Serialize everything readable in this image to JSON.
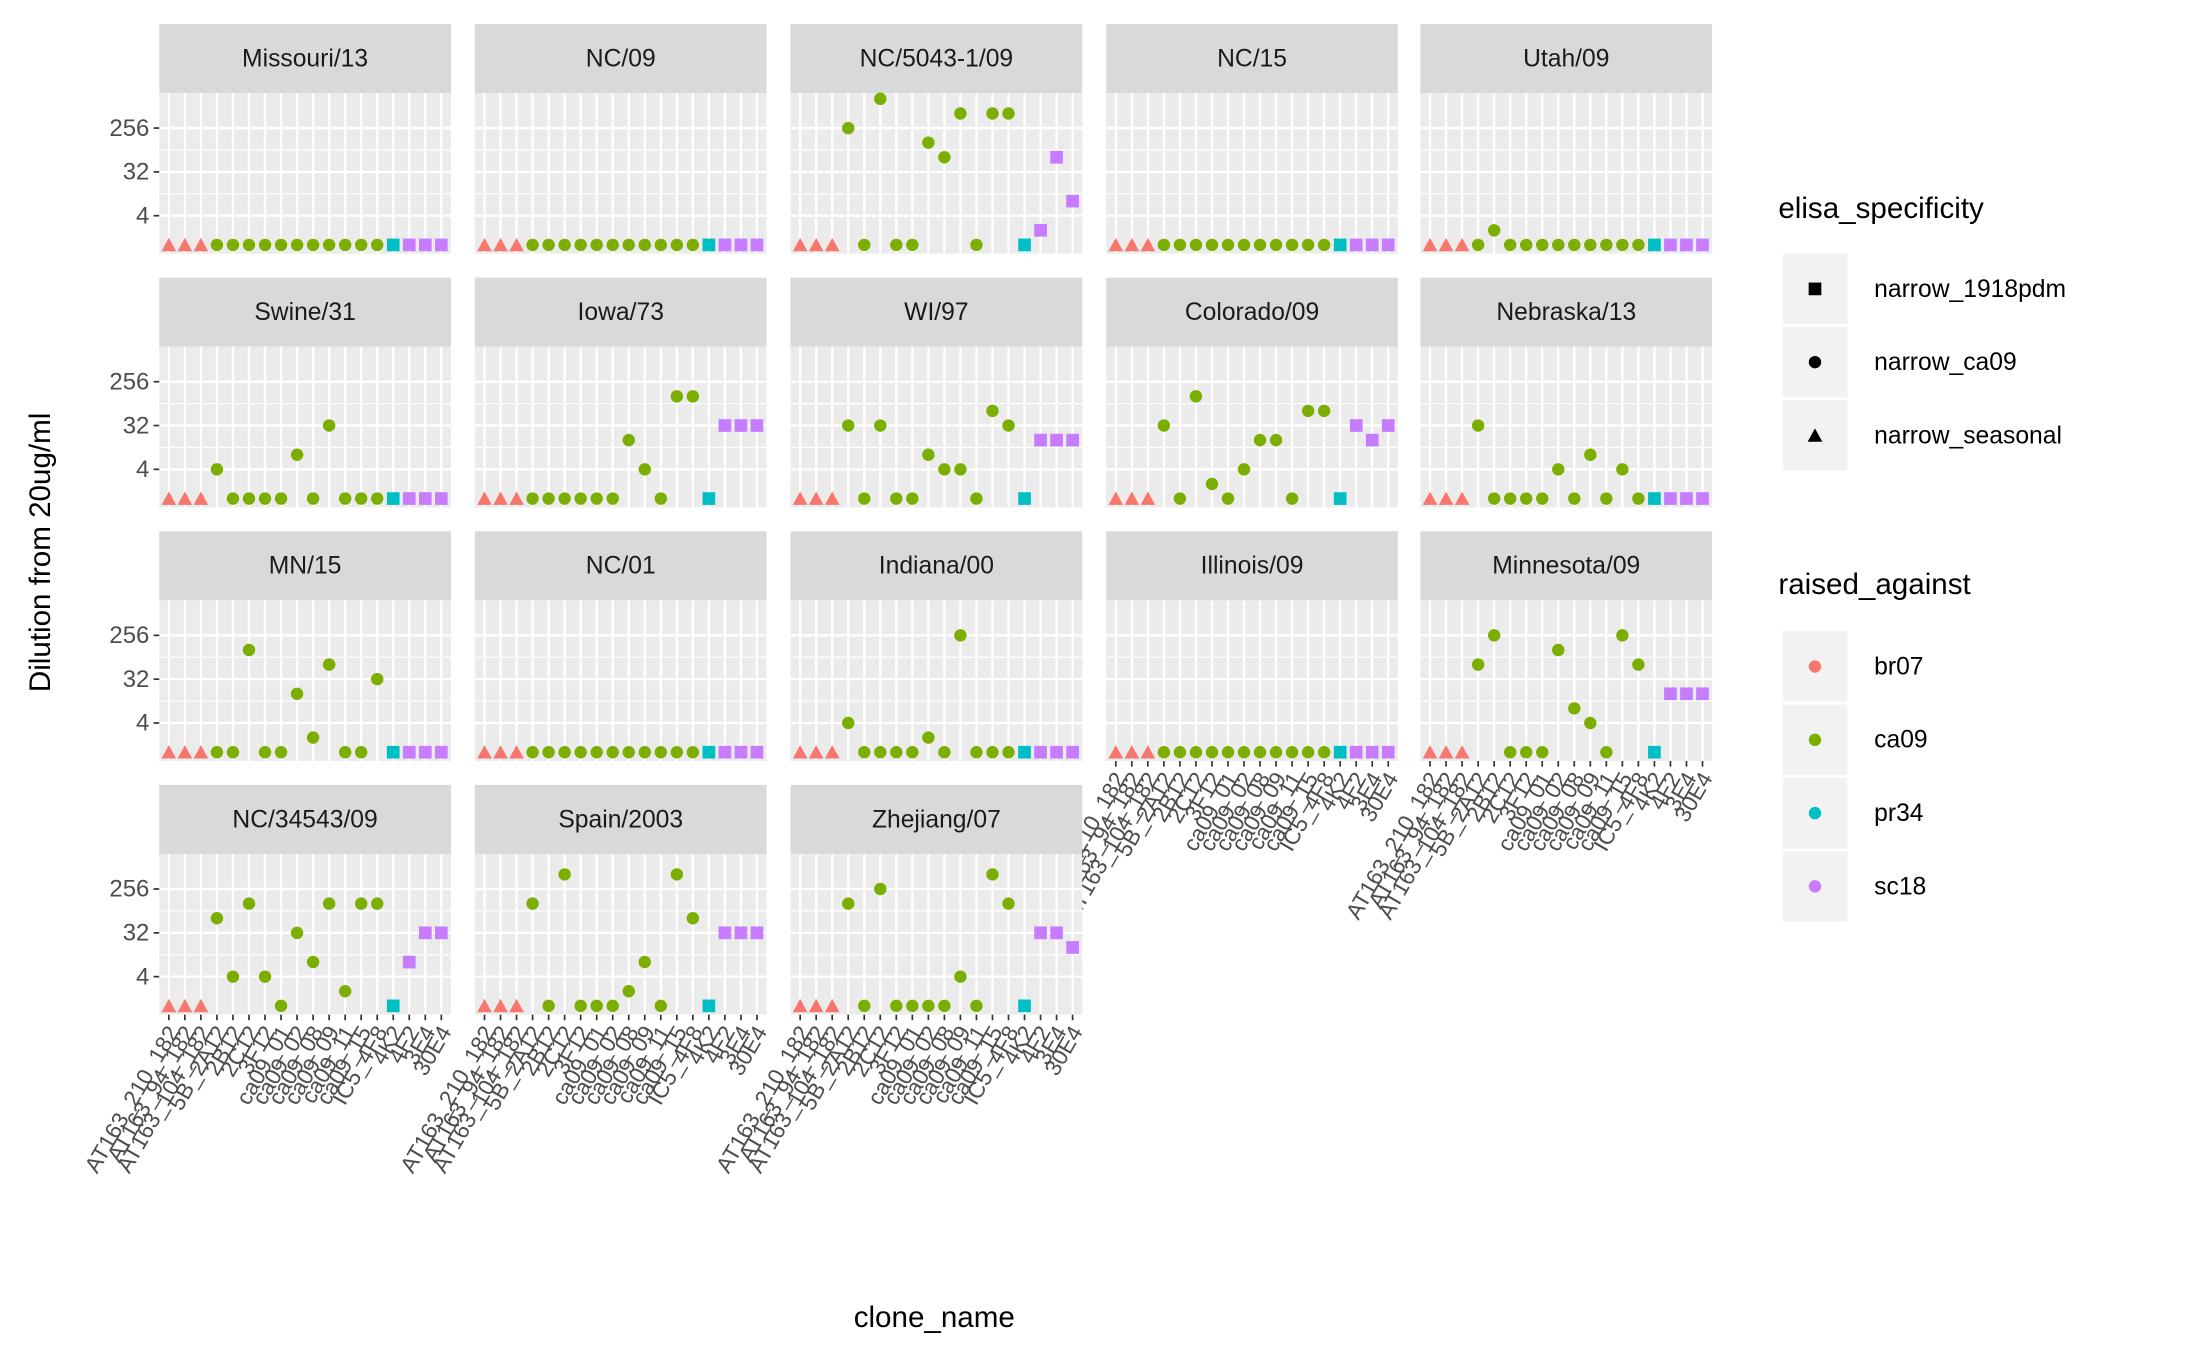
{
  "chart_data": {
    "type": "scatter",
    "x_label": "clone_name",
    "y_label": "Dilution from 20ug/ml",
    "log_y": true,
    "ylim": [
      0.66,
      1350
    ],
    "yticks": [
      4,
      32,
      256
    ],
    "grid": true,
    "columns": 5,
    "categories": [
      "AT163_210_182",
      "AT163_94_182",
      "AT163_104_182",
      "5B_2A12",
      "2B12",
      "2C12",
      "3F12",
      "ca09_01",
      "ca09_02",
      "ca09_08",
      "ca09_09",
      "ca09_11",
      "ca09_15",
      "IC5_4F8",
      "4K2",
      "4F2",
      "3E4",
      "30E4"
    ],
    "category_color_group": [
      0,
      0,
      0,
      1,
      1,
      1,
      1,
      1,
      1,
      1,
      1,
      1,
      1,
      1,
      2,
      3,
      3,
      3
    ],
    "category_shape_group": [
      2,
      2,
      2,
      1,
      1,
      1,
      1,
      1,
      1,
      1,
      1,
      1,
      1,
      1,
      0,
      0,
      0,
      0
    ],
    "shape_legend": {
      "title": "elisa_specificity",
      "entries": [
        {
          "name": "narrow_1918pdm",
          "shape": "square"
        },
        {
          "name": "narrow_ca09",
          "shape": "circle"
        },
        {
          "name": "narrow_seasonal",
          "shape": "triangle"
        }
      ]
    },
    "color_legend": {
      "title": "raised_against",
      "entries": [
        {
          "name": "br07",
          "color": "#F8766D"
        },
        {
          "name": "ca09",
          "color": "#7CAE00"
        },
        {
          "name": "pr34",
          "color": "#00BFC4"
        },
        {
          "name": "sc18",
          "color": "#C77CFF"
        }
      ]
    },
    "panels": [
      {
        "title": "Missouri/13",
        "values": [
          1,
          1,
          1,
          1,
          1,
          1,
          1,
          1,
          1,
          1,
          1,
          1,
          1,
          1,
          1,
          1,
          1,
          1
        ]
      },
      {
        "title": "NC/09",
        "values": [
          1,
          1,
          1,
          1,
          1,
          1,
          1,
          1,
          1,
          1,
          1,
          1,
          1,
          1,
          1,
          1,
          1,
          1
        ]
      },
      {
        "title": "NC/5043-1/09",
        "values": [
          1,
          1,
          1,
          256,
          1,
          1024,
          1,
          1,
          128,
          64,
          512,
          1,
          512,
          512,
          1,
          2,
          64,
          8
        ]
      },
      {
        "title": "NC/15",
        "values": [
          1,
          1,
          1,
          1,
          1,
          1,
          1,
          1,
          1,
          1,
          1,
          1,
          1,
          1,
          1,
          1,
          1,
          1
        ]
      },
      {
        "title": "Utah/09",
        "values": [
          1,
          1,
          1,
          1,
          2,
          1,
          1,
          1,
          1,
          1,
          1,
          1,
          1,
          1,
          1,
          1,
          1,
          1
        ]
      },
      {
        "title": "Swine/31",
        "values": [
          1,
          1,
          1,
          4,
          1,
          1,
          1,
          1,
          8,
          1,
          32,
          1,
          1,
          1,
          1,
          1,
          1,
          1
        ]
      },
      {
        "title": "Iowa/73",
        "values": [
          1,
          1,
          1,
          1,
          1,
          1,
          1,
          1,
          1,
          16,
          4,
          1,
          128,
          128,
          1,
          32,
          32,
          32
        ]
      },
      {
        "title": "WI/97",
        "values": [
          1,
          1,
          1,
          32,
          1,
          32,
          1,
          1,
          8,
          4,
          4,
          1,
          64,
          32,
          1,
          16,
          16,
          16
        ]
      },
      {
        "title": "Colorado/09",
        "values": [
          1,
          1,
          1,
          32,
          1,
          128,
          2,
          1,
          4,
          16,
          16,
          1,
          64,
          64,
          1,
          32,
          16,
          32
        ]
      },
      {
        "title": "Nebraska/13",
        "values": [
          1,
          1,
          1,
          32,
          1,
          1,
          1,
          1,
          4,
          1,
          8,
          1,
          4,
          1,
          1,
          1,
          1,
          1
        ]
      },
      {
        "title": "MN/15",
        "values": [
          1,
          1,
          1,
          1,
          1,
          128,
          1,
          1,
          16,
          2,
          64,
          1,
          1,
          32,
          1,
          1,
          1,
          1
        ]
      },
      {
        "title": "NC/01",
        "values": [
          1,
          1,
          1,
          1,
          1,
          1,
          1,
          1,
          1,
          1,
          1,
          1,
          1,
          1,
          1,
          1,
          1,
          1
        ]
      },
      {
        "title": "Indiana/00",
        "values": [
          1,
          1,
          1,
          4,
          1,
          1,
          1,
          1,
          2,
          1,
          256,
          1,
          1,
          1,
          1,
          1,
          1,
          1
        ]
      },
      {
        "title": "Illinois/09",
        "values": [
          1,
          1,
          1,
          1,
          1,
          1,
          1,
          1,
          1,
          1,
          1,
          1,
          1,
          1,
          1,
          1,
          1,
          1
        ]
      },
      {
        "title": "Minnesota/09",
        "values": [
          1,
          1,
          1,
          64,
          256,
          1,
          1,
          1,
          128,
          8,
          4,
          1,
          256,
          64,
          1,
          16,
          16,
          16
        ]
      },
      {
        "title": "NC/34543/09",
        "values": [
          1,
          1,
          1,
          64,
          4,
          128,
          4,
          1,
          32,
          8,
          128,
          2,
          128,
          128,
          1,
          8,
          32,
          32
        ]
      },
      {
        "title": "Spain/2003",
        "values": [
          1,
          1,
          1,
          128,
          1,
          512,
          1,
          1,
          1,
          2,
          8,
          1,
          512,
          64,
          1,
          32,
          32,
          32
        ]
      },
      {
        "title": "Zhejiang/07",
        "values": [
          1,
          1,
          1,
          128,
          1,
          256,
          1,
          1,
          1,
          1,
          4,
          1,
          512,
          128,
          1,
          32,
          32,
          16
        ]
      }
    ]
  }
}
